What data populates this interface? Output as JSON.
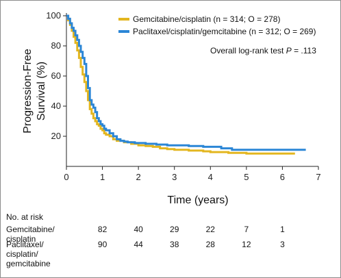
{
  "chart_data": {
    "type": "line",
    "xlabel": "Time (years)",
    "ylabel_lines": [
      "Progression-Free",
      "Survival (%)"
    ],
    "xlim": [
      0,
      7
    ],
    "ylim": [
      0,
      100
    ],
    "x_ticks": [
      "0",
      "1",
      "2",
      "3",
      "4",
      "5",
      "6",
      "7"
    ],
    "y_ticks": [
      "20",
      "40",
      "60",
      "80",
      "100"
    ],
    "annotation": {
      "prefix": "Overall log-rank test ",
      "italic": "P",
      "suffix": " = .113"
    },
    "series": [
      {
        "name": "Gemcitabine/cisplatin (n = 314; O = 278)",
        "color": "#e3b61f",
        "points": [
          [
            0,
            100
          ],
          [
            0.05,
            97
          ],
          [
            0.1,
            94
          ],
          [
            0.15,
            90
          ],
          [
            0.2,
            86
          ],
          [
            0.25,
            82
          ],
          [
            0.3,
            77
          ],
          [
            0.35,
            72
          ],
          [
            0.4,
            66
          ],
          [
            0.45,
            61
          ],
          [
            0.5,
            56
          ],
          [
            0.55,
            50
          ],
          [
            0.6,
            44
          ],
          [
            0.65,
            38
          ],
          [
            0.7,
            35
          ],
          [
            0.75,
            32
          ],
          [
            0.8,
            30
          ],
          [
            0.85,
            28
          ],
          [
            0.9,
            27
          ],
          [
            0.95,
            25
          ],
          [
            1.0,
            24
          ],
          [
            1.05,
            22
          ],
          [
            1.1,
            21
          ],
          [
            1.2,
            20
          ],
          [
            1.3,
            18
          ],
          [
            1.4,
            17
          ],
          [
            1.5,
            17
          ],
          [
            1.6,
            16
          ],
          [
            1.7,
            16
          ],
          [
            1.8,
            15
          ],
          [
            1.9,
            15
          ],
          [
            2.0,
            14
          ],
          [
            2.2,
            13.5
          ],
          [
            2.4,
            13
          ],
          [
            2.6,
            12
          ],
          [
            2.8,
            11.5
          ],
          [
            3.0,
            11
          ],
          [
            3.4,
            10.5
          ],
          [
            3.8,
            10
          ],
          [
            4.0,
            9.5
          ],
          [
            4.5,
            9
          ],
          [
            5.0,
            8.5
          ],
          [
            5.5,
            8.5
          ],
          [
            6.0,
            8.5
          ],
          [
            6.35,
            8.5
          ]
        ]
      },
      {
        "name": "Paclitaxel/cisplatin/gemcitabine (n = 312; O = 269)",
        "color": "#2b86d6",
        "points": [
          [
            0,
            100
          ],
          [
            0.05,
            98
          ],
          [
            0.1,
            95
          ],
          [
            0.15,
            92
          ],
          [
            0.2,
            90
          ],
          [
            0.25,
            87
          ],
          [
            0.3,
            84
          ],
          [
            0.35,
            80
          ],
          [
            0.4,
            76
          ],
          [
            0.45,
            72
          ],
          [
            0.5,
            68
          ],
          [
            0.55,
            60
          ],
          [
            0.6,
            52
          ],
          [
            0.65,
            44
          ],
          [
            0.7,
            41
          ],
          [
            0.75,
            39
          ],
          [
            0.8,
            36
          ],
          [
            0.85,
            32
          ],
          [
            0.9,
            30
          ],
          [
            0.95,
            28
          ],
          [
            1.0,
            27
          ],
          [
            1.05,
            25
          ],
          [
            1.1,
            24
          ],
          [
            1.2,
            22
          ],
          [
            1.3,
            20
          ],
          [
            1.4,
            18
          ],
          [
            1.5,
            17
          ],
          [
            1.6,
            16.5
          ],
          [
            1.7,
            16
          ],
          [
            1.8,
            16
          ],
          [
            1.9,
            15.5
          ],
          [
            2.0,
            15.5
          ],
          [
            2.2,
            15
          ],
          [
            2.5,
            14.5
          ],
          [
            2.8,
            14
          ],
          [
            3.0,
            14
          ],
          [
            3.4,
            13.5
          ],
          [
            3.8,
            13
          ],
          [
            4.0,
            13
          ],
          [
            4.3,
            12
          ],
          [
            4.6,
            11
          ],
          [
            5.0,
            11
          ],
          [
            5.5,
            11
          ],
          [
            6.0,
            11
          ],
          [
            6.5,
            11
          ],
          [
            6.65,
            11
          ]
        ]
      }
    ],
    "risk_table": {
      "title": "No. at risk",
      "times": [
        1,
        2,
        3,
        4,
        5,
        6
      ],
      "rows": [
        {
          "label_lines": [
            "Gemcitabine/",
            "cisplatin"
          ],
          "values": [
            "82",
            "40",
            "29",
            "22",
            "7",
            "1"
          ]
        },
        {
          "label_lines": [
            "Paclitaxel/",
            "cisplatin/",
            "gemcitabine"
          ],
          "values": [
            "90",
            "44",
            "38",
            "28",
            "12",
            "3"
          ]
        }
      ]
    }
  }
}
